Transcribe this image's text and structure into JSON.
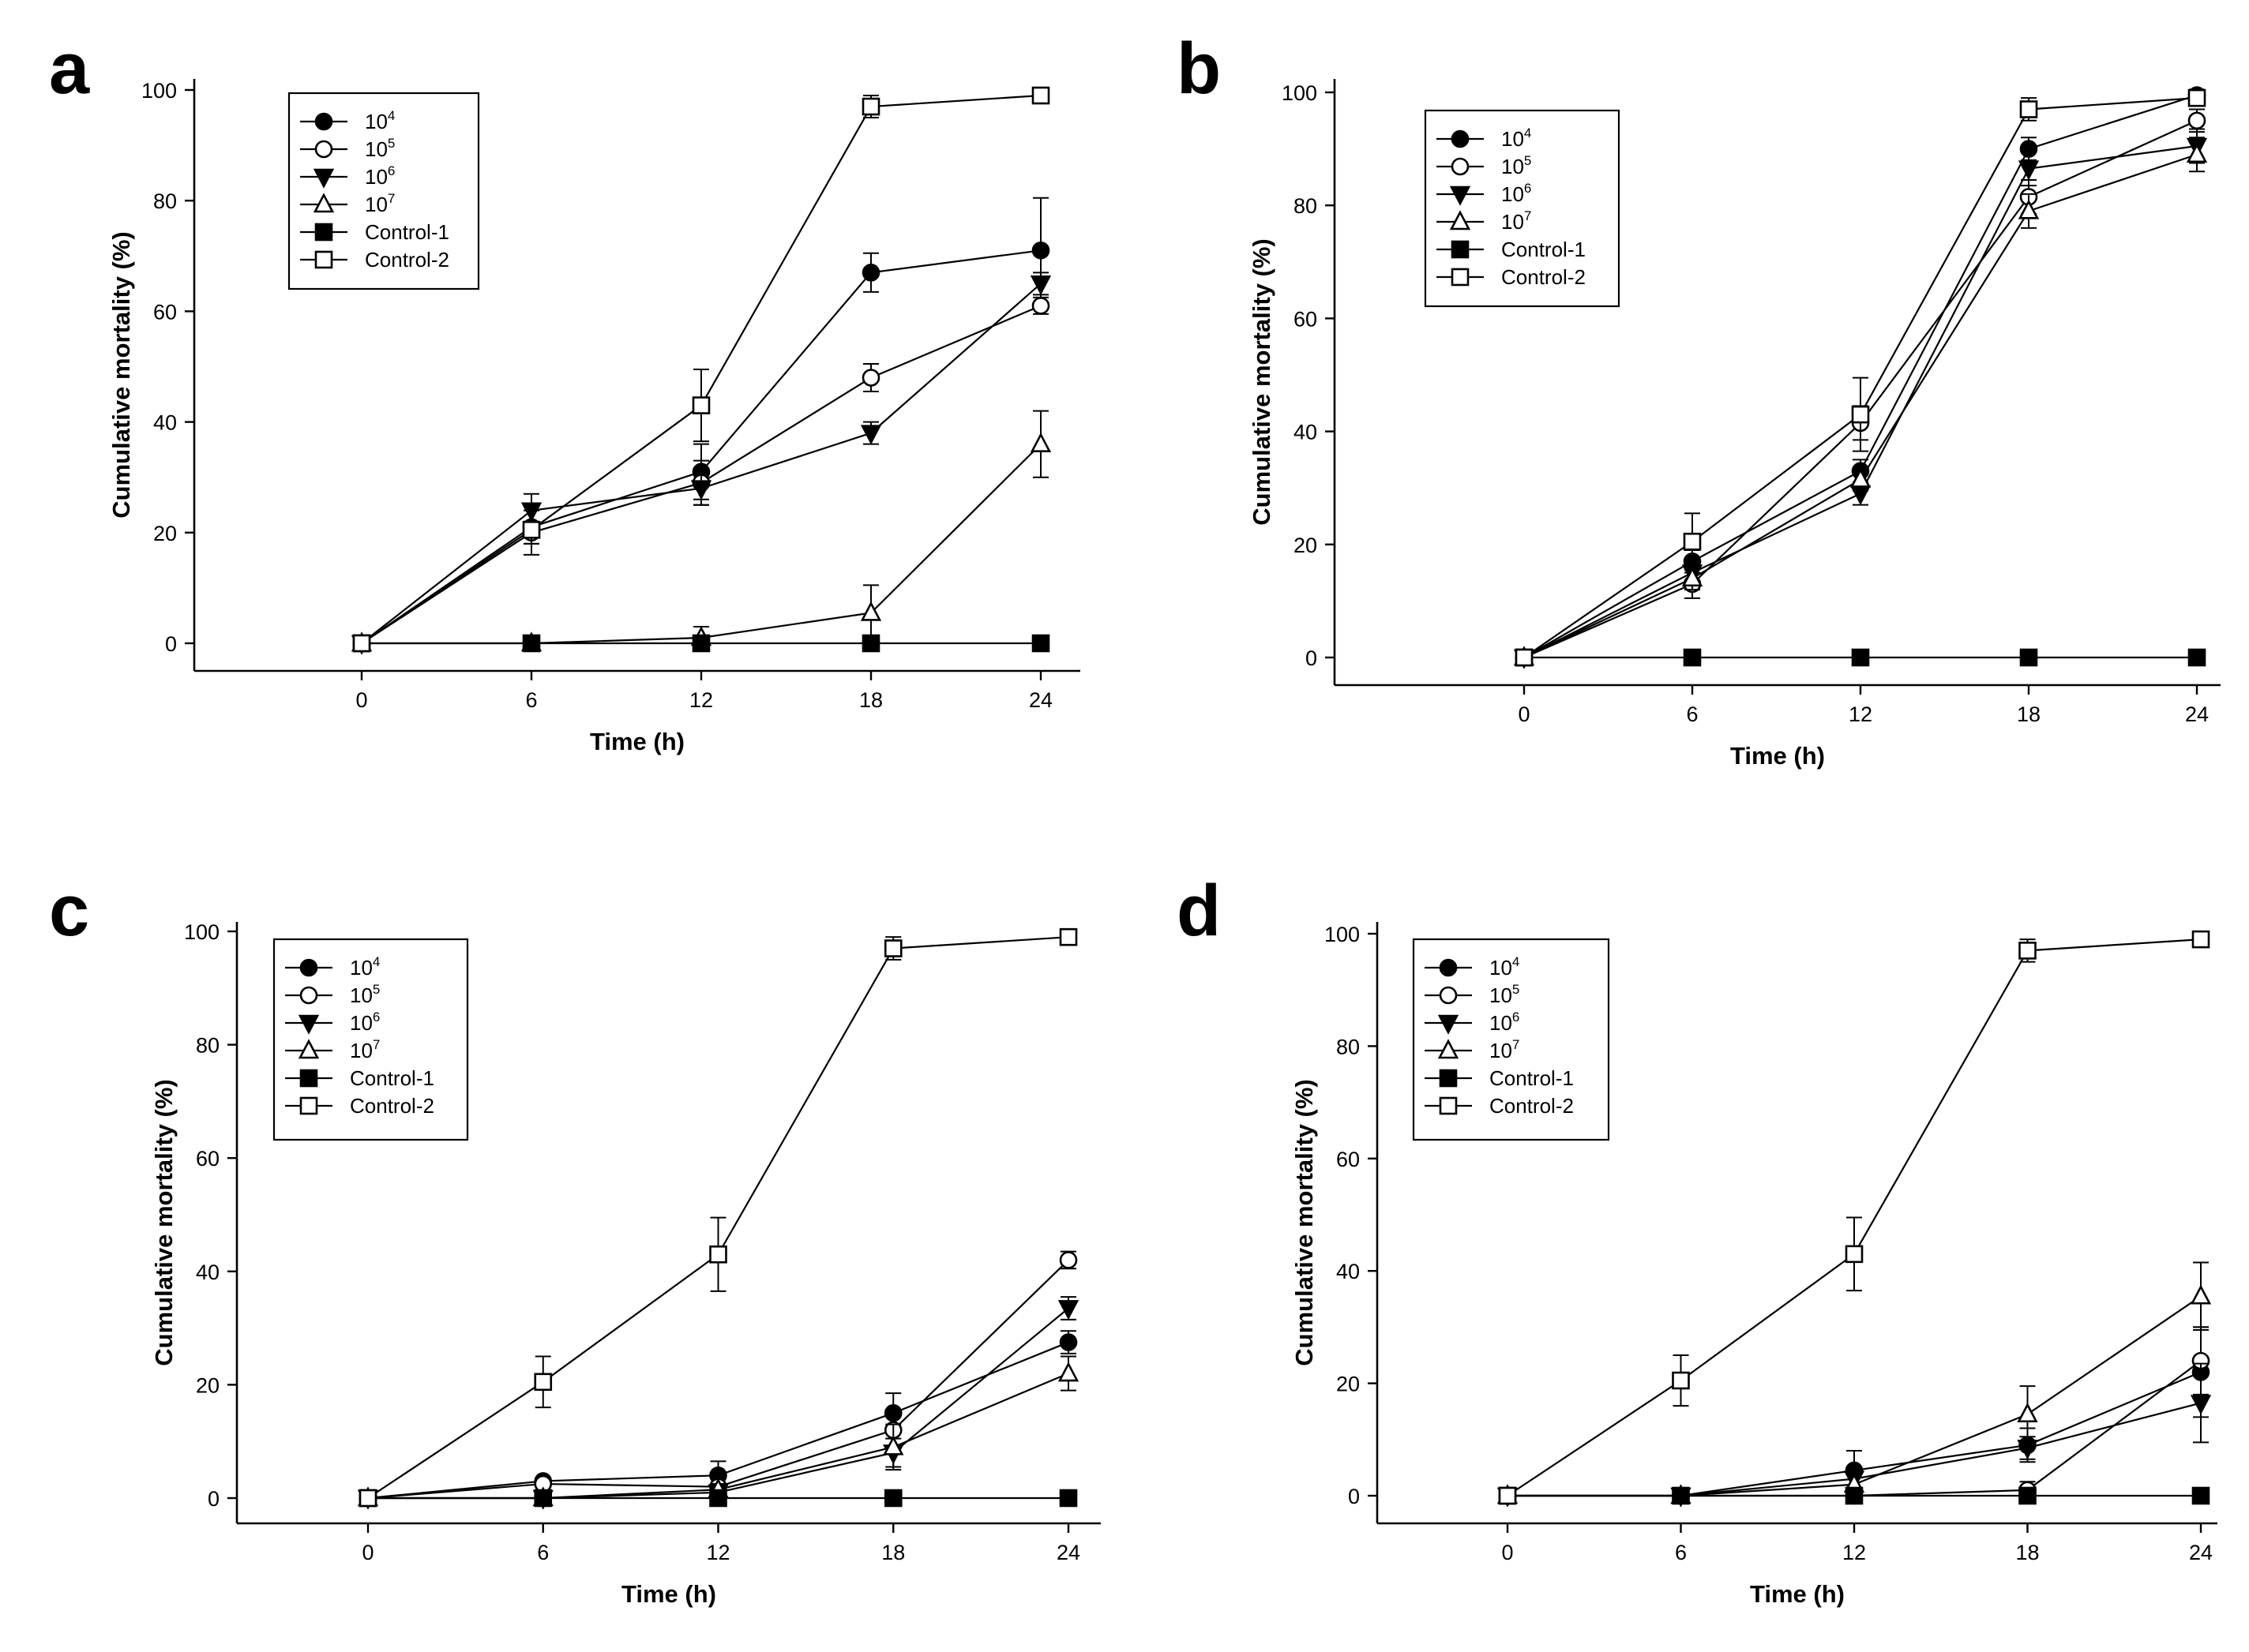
{
  "figure": {
    "x_label": "Time (h)",
    "y_label": "Cumulative mortality (%)",
    "x_ticks": [
      "0",
      "6",
      "12",
      "18",
      "24"
    ],
    "y_ticks": [
      "0",
      "20",
      "40",
      "60",
      "80",
      "100"
    ],
    "legend": [
      {
        "base": "10",
        "exp": "4",
        "marker": "circle",
        "filled": true
      },
      {
        "base": "10",
        "exp": "5",
        "marker": "circle",
        "filled": false
      },
      {
        "base": "10",
        "exp": "6",
        "marker": "triangle-down",
        "filled": true
      },
      {
        "base": "10",
        "exp": "7",
        "marker": "triangle-up",
        "filled": false
      },
      {
        "base": "Control-1",
        "exp": "",
        "marker": "square",
        "filled": true
      },
      {
        "base": "Control-2",
        "exp": "",
        "marker": "square",
        "filled": false
      }
    ]
  },
  "chart_data": [
    {
      "panel": "a",
      "type": "line",
      "xlabel": "Time (h)",
      "ylabel": "Cumulative mortality (%)",
      "xlim": [
        -4,
        25
      ],
      "ylim": [
        -5,
        100
      ],
      "x": [
        0,
        6,
        12,
        18,
        24
      ],
      "legend_position": "top-left",
      "grid": false,
      "series": [
        {
          "name": "10^4",
          "marker": "circle",
          "filled": true,
          "values": [
            0,
            21,
            31,
            67,
            71
          ],
          "err": [
            0,
            3,
            5,
            3.5,
            9.5
          ]
        },
        {
          "name": "10^5",
          "marker": "circle",
          "filled": false,
          "values": [
            0,
            20,
            29,
            48,
            61
          ],
          "err": [
            0,
            2,
            4,
            2.5,
            1.5
          ]
        },
        {
          "name": "10^6",
          "marker": "triangle-down",
          "filled": true,
          "values": [
            0,
            24,
            28,
            38,
            65
          ],
          "err": [
            0,
            3,
            3,
            2,
            2
          ]
        },
        {
          "name": "10^7",
          "marker": "triangle-up",
          "filled": false,
          "values": [
            0,
            0,
            1,
            5.5,
            36
          ],
          "err": [
            0,
            0,
            2,
            5,
            6
          ]
        },
        {
          "name": "Control-1",
          "marker": "square",
          "filled": true,
          "values": [
            0,
            0,
            0,
            0,
            0
          ],
          "err": [
            0,
            0,
            0,
            0,
            0
          ]
        },
        {
          "name": "Control-2",
          "marker": "square",
          "filled": false,
          "values": [
            0,
            20.5,
            43,
            97,
            99
          ],
          "err": [
            0,
            4.5,
            6.5,
            2,
            1
          ]
        }
      ]
    },
    {
      "panel": "b",
      "type": "line",
      "xlabel": "Time (h)",
      "ylabel": "Cumulative mortality (%)",
      "xlim": [
        -4,
        25
      ],
      "ylim": [
        -5,
        100
      ],
      "x": [
        0,
        6,
        12,
        18,
        24
      ],
      "legend_position": "top-left",
      "grid": false,
      "series": [
        {
          "name": "10^4",
          "marker": "circle",
          "filled": true,
          "values": [
            0,
            17,
            33,
            90,
            99.5
          ],
          "err": [
            0,
            2,
            2,
            2,
            1
          ]
        },
        {
          "name": "10^5",
          "marker": "circle",
          "filled": false,
          "values": [
            0,
            13,
            41.5,
            81.5,
            95
          ],
          "err": [
            0,
            2.5,
            3,
            3,
            2
          ]
        },
        {
          "name": "10^6",
          "marker": "triangle-down",
          "filled": true,
          "values": [
            0,
            15,
            29,
            86.5,
            90.5
          ],
          "err": [
            0,
            2,
            2,
            3,
            3
          ]
        },
        {
          "name": "10^7",
          "marker": "triangle-up",
          "filled": false,
          "values": [
            0,
            14,
            31.5,
            79,
            89
          ],
          "err": [
            0,
            2,
            2,
            3,
            3
          ]
        },
        {
          "name": "Control-1",
          "marker": "square",
          "filled": true,
          "values": [
            0,
            0,
            0,
            0,
            0
          ],
          "err": [
            0,
            0,
            0,
            0,
            0
          ]
        },
        {
          "name": "Control-2",
          "marker": "square",
          "filled": false,
          "values": [
            0,
            20.5,
            43,
            97,
            99
          ],
          "err": [
            0,
            5,
            6.5,
            2,
            1
          ]
        }
      ]
    },
    {
      "panel": "c",
      "type": "line",
      "xlabel": "Time (h)",
      "ylabel": "Cumulative mortality (%)",
      "xlim": [
        -4,
        25
      ],
      "ylim": [
        -5,
        100
      ],
      "x": [
        0,
        6,
        12,
        18,
        24
      ],
      "legend_position": "top-left",
      "grid": false,
      "series": [
        {
          "name": "10^4",
          "marker": "circle",
          "filled": true,
          "values": [
            0,
            3,
            4,
            15,
            27.5
          ],
          "err": [
            0,
            0.5,
            2.5,
            3.5,
            2
          ]
        },
        {
          "name": "10^5",
          "marker": "circle",
          "filled": false,
          "values": [
            0,
            2.5,
            2,
            12,
            42
          ],
          "err": [
            0,
            0.5,
            2,
            3,
            1.5
          ]
        },
        {
          "name": "10^6",
          "marker": "triangle-down",
          "filled": true,
          "values": [
            0,
            0,
            1,
            8,
            33.5
          ],
          "err": [
            0,
            0,
            1,
            2.5,
            2
          ]
        },
        {
          "name": "10^7",
          "marker": "triangle-up",
          "filled": false,
          "values": [
            0,
            0,
            1.5,
            9,
            22
          ],
          "err": [
            0,
            0,
            1,
            4,
            3
          ]
        },
        {
          "name": "Control-1",
          "marker": "square",
          "filled": true,
          "values": [
            0,
            0,
            0,
            0,
            0
          ],
          "err": [
            0,
            0,
            0,
            0,
            0
          ]
        },
        {
          "name": "Control-2",
          "marker": "square",
          "filled": false,
          "values": [
            0,
            20.5,
            43,
            97,
            99
          ],
          "err": [
            0,
            4.5,
            6.5,
            2,
            1
          ]
        }
      ]
    },
    {
      "panel": "d",
      "type": "line",
      "xlabel": "Time (h)",
      "ylabel": "Cumulative mortality (%)",
      "xlim": [
        -4,
        25
      ],
      "ylim": [
        -5,
        100
      ],
      "x": [
        0,
        6,
        12,
        18,
        24
      ],
      "legend_position": "top-left",
      "grid": false,
      "series": [
        {
          "name": "10^4",
          "marker": "circle",
          "filled": true,
          "values": [
            0,
            0,
            4.5,
            9,
            22
          ],
          "err": [
            0,
            0,
            3.5,
            3,
            8
          ]
        },
        {
          "name": "10^5",
          "marker": "circle",
          "filled": false,
          "values": [
            0,
            0,
            0,
            1,
            24
          ],
          "err": [
            0,
            0,
            0,
            1.5,
            6
          ]
        },
        {
          "name": "10^6",
          "marker": "triangle-down",
          "filled": true,
          "values": [
            0,
            0,
            3,
            8.5,
            16.5
          ],
          "err": [
            0,
            0,
            2,
            2,
            7
          ]
        },
        {
          "name": "10^7",
          "marker": "triangle-up",
          "filled": false,
          "values": [
            0,
            0,
            2,
            14.5,
            35.5
          ],
          "err": [
            0,
            0,
            2,
            5,
            6
          ]
        },
        {
          "name": "Control-1",
          "marker": "square",
          "filled": true,
          "values": [
            0,
            0,
            0,
            0,
            0
          ],
          "err": [
            0,
            0,
            0,
            0,
            0
          ]
        },
        {
          "name": "Control-2",
          "marker": "square",
          "filled": false,
          "values": [
            0,
            20.5,
            43,
            97,
            99
          ],
          "err": [
            0,
            4.5,
            6.5,
            2,
            1
          ]
        }
      ]
    }
  ]
}
